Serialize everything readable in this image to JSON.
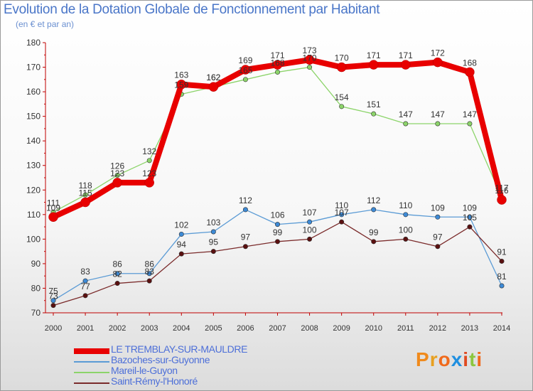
{
  "title": "Evolution de la Dotation Globale de Fonctionnement par Habitant",
  "subtitle": "(en € et par an)",
  "logo": {
    "text": "Proxiti",
    "letter_colors": [
      "#f08a1c",
      "#e8a020",
      "#f06a1c",
      "#1f8fe0",
      "#e04a20",
      "#8cc63f",
      "#f06a1c"
    ]
  },
  "chart_data": {
    "type": "line",
    "title": "Evolution de la Dotation Globale de Fonctionnement par Habitant",
    "subtitle": "(en € et par an)",
    "xlabel": "",
    "ylabel": "",
    "x": [
      "2000",
      "2001",
      "2002",
      "2003",
      "2004",
      "2005",
      "2006",
      "2007",
      "2008",
      "2009",
      "2010",
      "2011",
      "2012",
      "2013",
      "2014"
    ],
    "ylim": [
      70,
      180
    ],
    "yticks": [
      70,
      80,
      90,
      100,
      110,
      120,
      130,
      140,
      150,
      160,
      170,
      180
    ],
    "grid": false,
    "legend_position": "bottom-left",
    "series": [
      {
        "name": "Mareil-le-Guyon",
        "color": "#8cd46a",
        "marker": "#8cd46a",
        "values": [
          111,
          118,
          126,
          132,
          159,
          162,
          165,
          168,
          170,
          154,
          151,
          147,
          147,
          147,
          117
        ],
        "labels": [
          "111",
          "118",
          "126",
          "132",
          "159",
          "162",
          "165",
          "168",
          "170",
          "154",
          "151",
          "147",
          "147",
          "147",
          "117"
        ]
      },
      {
        "name": "Bazoches-sur-Guyonne",
        "color": "#5b9bd5",
        "marker": "#3d8ad6",
        "values": [
          75,
          83,
          86,
          86,
          102,
          103,
          112,
          106,
          107,
          110,
          112,
          110,
          109,
          109,
          81
        ],
        "labels": [
          "75",
          "83",
          "86",
          "86",
          "102",
          "103",
          "112",
          "106",
          "107",
          "110",
          "112",
          "110",
          "109",
          "109",
          "81"
        ]
      },
      {
        "name": "Saint-Rémy-l'Honoré",
        "color": "#7a2a2a",
        "marker": "#5a1010",
        "values": [
          73,
          77,
          82,
          83,
          94,
          95,
          97,
          99,
          100,
          107,
          99,
          100,
          97,
          105,
          91
        ],
        "labels": [
          "73",
          "77",
          "82",
          "83",
          "94",
          "95",
          "97",
          "99",
          "100",
          "107",
          "99",
          "100",
          "97",
          "105",
          "91"
        ]
      },
      {
        "name": "LE TREMBLAY-SUR-MAULDRE",
        "color": "#e80000",
        "marker": "#e80000",
        "values": [
          109,
          115,
          123,
          123,
          163,
          162,
          169,
          171,
          173,
          170,
          171,
          171,
          172,
          168,
          116
        ],
        "labels": [
          "109",
          "115",
          "123",
          "123",
          "163",
          "162",
          "169",
          "171",
          "173",
          "170",
          "171",
          "171",
          "172",
          "168",
          "116"
        ]
      }
    ],
    "legend": [
      {
        "name": "LE TREMBLAY-SUR-MAULDRE",
        "color": "#e80000"
      },
      {
        "name": "Bazoches-sur-Guyonne",
        "color": "#5b9bd5"
      },
      {
        "name": "Mareil-le-Guyon",
        "color": "#8cd46a"
      },
      {
        "name": "Saint-Rémy-l'Honoré",
        "color": "#7a2a2a"
      }
    ]
  }
}
